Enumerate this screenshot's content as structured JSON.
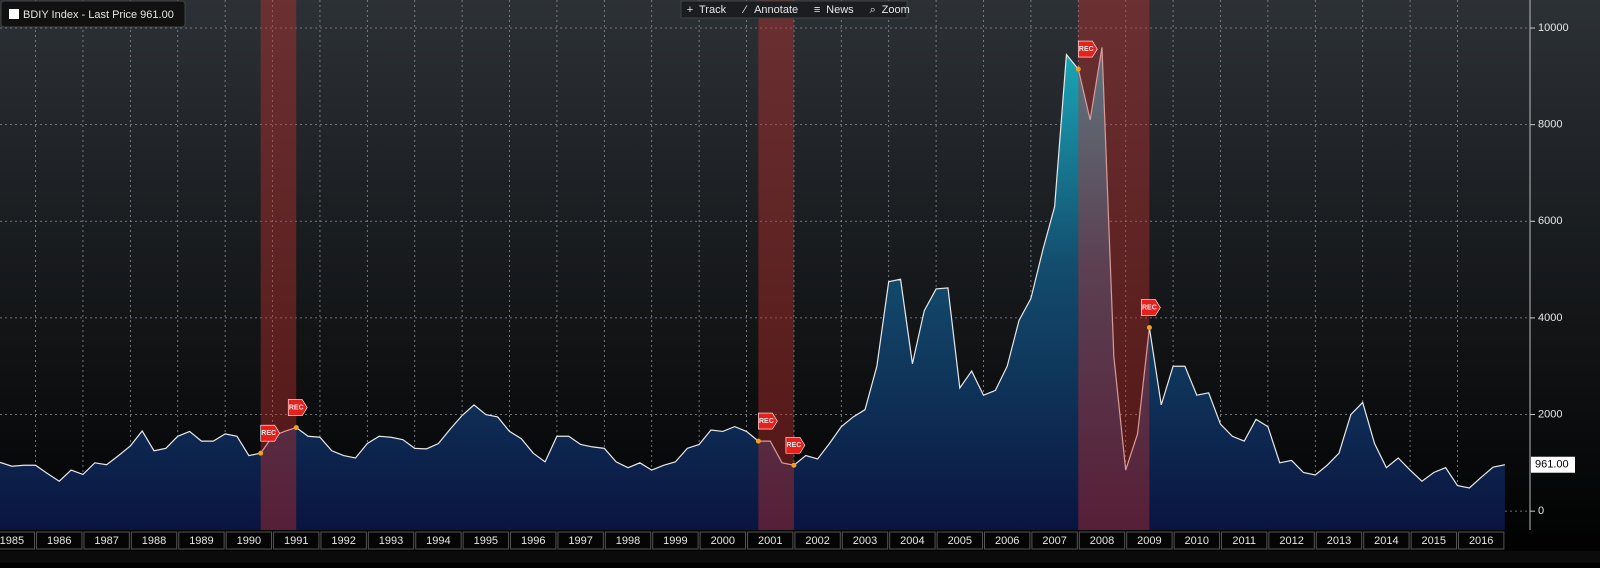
{
  "chart_data": {
    "type": "area",
    "title": "BDIY Index - Last Price 961.00",
    "toolbar": [
      "Track",
      "Annotate",
      "News",
      "Zoom"
    ],
    "x": [
      1985.25,
      1985.5,
      1985.75,
      1986.0,
      1986.25,
      1986.5,
      1986.75,
      1987.0,
      1987.25,
      1987.5,
      1987.75,
      1988.0,
      1988.25,
      1988.5,
      1988.75,
      1989.0,
      1989.25,
      1989.5,
      1989.75,
      1990.0,
      1990.25,
      1990.5,
      1990.75,
      1991.0,
      1991.25,
      1991.5,
      1991.75,
      1992.0,
      1992.25,
      1992.5,
      1992.75,
      1993.0,
      1993.25,
      1993.5,
      1993.75,
      1994.0,
      1994.25,
      1994.5,
      1994.75,
      1995.0,
      1995.25,
      1995.5,
      1995.75,
      1996.0,
      1996.25,
      1996.5,
      1996.75,
      1997.0,
      1997.25,
      1997.5,
      1997.75,
      1998.0,
      1998.25,
      1998.5,
      1998.75,
      1999.0,
      1999.25,
      1999.5,
      1999.75,
      2000.0,
      2000.25,
      2000.5,
      2000.75,
      2001.0,
      2001.25,
      2001.5,
      2001.75,
      2002.0,
      2002.25,
      2002.5,
      2002.75,
      2003.0,
      2003.25,
      2003.5,
      2003.75,
      2004.0,
      2004.25,
      2004.5,
      2004.75,
      2005.0,
      2005.25,
      2005.5,
      2005.75,
      2006.0,
      2006.25,
      2006.5,
      2006.75,
      2007.0,
      2007.25,
      2007.5,
      2007.75,
      2008.0,
      2008.25,
      2008.5,
      2008.75,
      2009.0,
      2009.25,
      2009.5,
      2009.75,
      2010.0,
      2010.25,
      2010.5,
      2010.75,
      2011.0,
      2011.25,
      2011.5,
      2011.75,
      2012.0,
      2012.25,
      2012.5,
      2012.75,
      2013.0,
      2013.25,
      2013.5,
      2013.75,
      2014.0,
      2014.25,
      2014.5,
      2014.75,
      2015.0,
      2015.25,
      2015.5,
      2015.75,
      2016.0,
      2016.25,
      2016.5,
      2016.75,
      2017.0
    ],
    "series": [
      {
        "name": "BDIY Index",
        "color": "#e8e8e8",
        "values": [
          1010,
          930,
          950,
          950,
          780,
          620,
          850,
          760,
          1000,
          960,
          1150,
          1350,
          1660,
          1250,
          1300,
          1550,
          1650,
          1450,
          1450,
          1600,
          1550,
          1150,
          1200,
          1550,
          1650,
          1730,
          1550,
          1530,
          1250,
          1150,
          1100,
          1400,
          1550,
          1530,
          1480,
          1300,
          1290,
          1400,
          1700,
          1980,
          2200,
          2000,
          1950,
          1650,
          1500,
          1200,
          1020,
          1550,
          1550,
          1380,
          1330,
          1300,
          1020,
          900,
          1000,
          850,
          950,
          1020,
          1300,
          1380,
          1680,
          1650,
          1750,
          1650,
          1450,
          1450,
          1000,
          950,
          1150,
          1080,
          1400,
          1750,
          1950,
          2100,
          3000,
          4750,
          4800,
          3050,
          4150,
          4600,
          4620,
          2550,
          2900,
          2400,
          2500,
          3000,
          3950,
          4400,
          5400,
          6300,
          9450,
          9150,
          8100,
          9600,
          3200,
          850,
          1600,
          3800,
          2200,
          3000,
          3000,
          2400,
          2450,
          1800,
          1550,
          1450,
          1900,
          1750,
          1000,
          1050,
          800,
          750,
          950,
          1200,
          2000,
          2250,
          1400,
          900,
          1100,
          850,
          620,
          800,
          900,
          530,
          480,
          700,
          910,
          961
        ]
      }
    ],
    "last_price": {
      "value": 961,
      "label": "961.00"
    },
    "recessions": [
      {
        "start": 1990.75,
        "end": 1991.5
      },
      {
        "start": 2001.25,
        "end": 2002.0
      },
      {
        "start": 2008.0,
        "end": 2009.5
      }
    ],
    "recession_label": "REC",
    "xlim": [
      1985.25,
      2017.53
    ],
    "xticks": [
      1985,
      1986,
      1987,
      1988,
      1989,
      1990,
      1991,
      1992,
      1993,
      1994,
      1995,
      1996,
      1997,
      1998,
      1999,
      2000,
      2001,
      2002,
      2003,
      2004,
      2005,
      2006,
      2007,
      2008,
      2009,
      2010,
      2011,
      2012,
      2013,
      2014,
      2015,
      2016
    ],
    "ylim": [
      -390,
      10580
    ],
    "yticks": [
      0,
      2000,
      4000,
      6000,
      8000,
      10000
    ],
    "grid": true
  }
}
